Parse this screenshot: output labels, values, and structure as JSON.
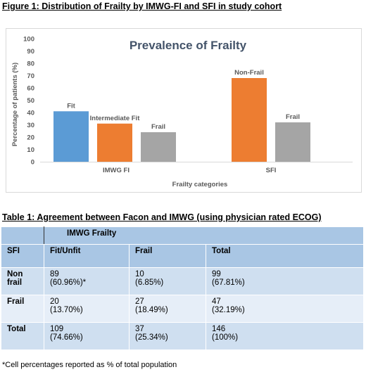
{
  "figure_caption": "Figure 1: Distribution of Frailty by IMWG-FI and SFI in study cohort",
  "chart_data": {
    "type": "bar",
    "title": "Prevalence of Frailty",
    "xlabel": "Frailty categories",
    "ylabel": "Percentage of patients (%)",
    "ylim": [
      0,
      100
    ],
    "yticks": [
      0,
      10,
      20,
      30,
      40,
      50,
      60,
      70,
      80,
      90,
      100
    ],
    "grid": false,
    "legend": "none",
    "groups": [
      {
        "name": "IMWG FI",
        "bars": [
          {
            "label": "Fit",
            "value": 41,
            "color": "#5b9bd5"
          },
          {
            "label": "Intermediate Fit",
            "value": 31,
            "color": "#ed7d31"
          },
          {
            "label": "Frail",
            "value": 24,
            "color": "#a5a5a5"
          }
        ]
      },
      {
        "name": "SFI",
        "bars": [
          {
            "label": "Non-Frail",
            "value": 68,
            "color": "#ed7d31"
          },
          {
            "label": "Frail",
            "value": 32,
            "color": "#a5a5a5"
          }
        ]
      }
    ],
    "colors": {
      "title": "#44546a",
      "axis_text": "#595959"
    }
  },
  "table_caption": "Table 1: Agreement between Facon and IMWG (using physician rated ECOG)",
  "table": {
    "group_header": "IMWG Frailty",
    "columns": [
      "SFI",
      "Fit/Unfit",
      "Frail",
      "Total"
    ],
    "rows": [
      {
        "label": "Non frail",
        "cells": [
          [
            "89",
            "(60.96%)*"
          ],
          [
            "10",
            "(6.85%)"
          ],
          [
            "99",
            "(67.81%)"
          ]
        ]
      },
      {
        "label": "Frail",
        "cells": [
          [
            "20",
            "(13.70%)"
          ],
          [
            "27",
            "(18.49%)"
          ],
          [
            "47",
            "(32.19%)"
          ]
        ]
      },
      {
        "label": "Total",
        "cells": [
          [
            "109",
            "(74.66%)"
          ],
          [
            "37",
            "(25.34%)"
          ],
          [
            "146",
            "(100%)"
          ]
        ]
      }
    ],
    "colors": {
      "header": "#a9c6e4",
      "row_dark": "#cfdff0",
      "row_light": "#e6eef8"
    }
  },
  "footnote": "*Cell percentages reported as % of total population"
}
